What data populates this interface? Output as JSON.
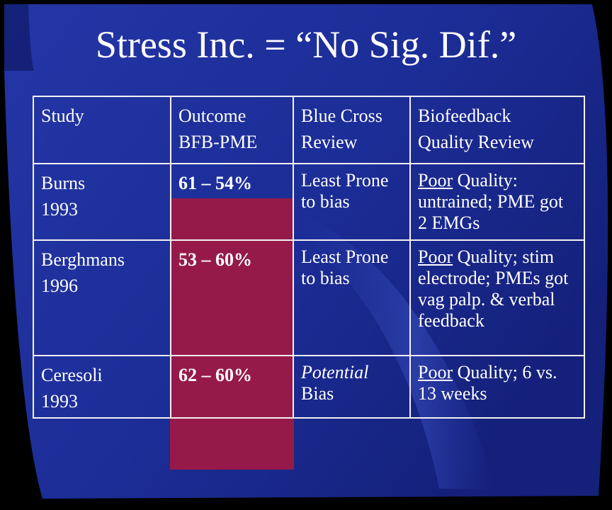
{
  "slide": {
    "title": "Stress Inc. = “No Sig. Dif.”",
    "colors": {
      "background": "#000000",
      "panel_blue": "#1d2f9b",
      "highlight_bar": "#951a49",
      "text": "#ffffff",
      "table_border": "#f2f2f2"
    }
  },
  "table": {
    "headers": [
      {
        "lines": [
          "Study"
        ]
      },
      {
        "lines": [
          "Outcome",
          "BFB-PME"
        ]
      },
      {
        "lines": [
          "Blue Cross",
          "Review"
        ]
      },
      {
        "lines": [
          "Biofeedback",
          "Quality Review"
        ]
      }
    ],
    "rows": [
      {
        "study": [
          "Burns",
          "1993"
        ],
        "outcome": "61 – 54%",
        "blue_cross": {
          "em": "",
          "text": "Least Prone to bias"
        },
        "quality": {
          "underlined": "Poor",
          "rest": " Quality: untrained; PME got 2 EMGs"
        }
      },
      {
        "study": [
          "Berghmans",
          "1996"
        ],
        "outcome": "53 – 60%",
        "blue_cross": {
          "em": "",
          "text": "Least Prone to bias"
        },
        "quality": {
          "underlined": "Poor",
          "rest": " Quality; stim electrode; PMEs got vag palp. & verbal feedback"
        }
      },
      {
        "study": [
          "Ceresoli",
          "1993"
        ],
        "outcome": "62 – 60%",
        "blue_cross": {
          "em": "Potential",
          "text": " Bias"
        },
        "quality": {
          "underlined": "Poor",
          "rest": " Quality; 6 vs. 13 weeks"
        }
      }
    ]
  }
}
